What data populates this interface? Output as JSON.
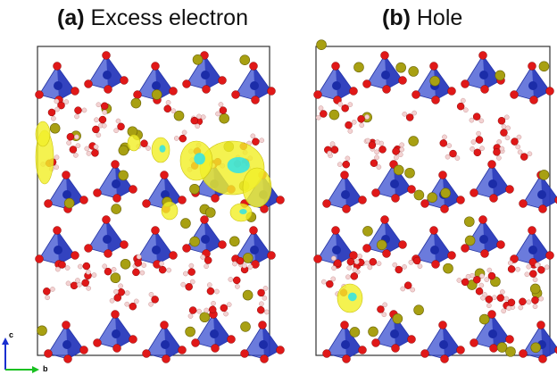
{
  "panels": [
    {
      "tag": "(a)",
      "label": "Excess electron"
    },
    {
      "tag": "(b)",
      "label": "Hole"
    }
  ],
  "axes": {
    "vertical": "c",
    "horizontal": "b"
  },
  "colors": {
    "tetrahedron": "#3a4fd0",
    "oxygen": "#e01818",
    "hydrogen": "#f3d2d2",
    "cation": "#a8a012",
    "isosurface_yellow": "#f2ef2a",
    "isosurface_cyan": "#2fe3e8",
    "cell_border": "#333333"
  }
}
